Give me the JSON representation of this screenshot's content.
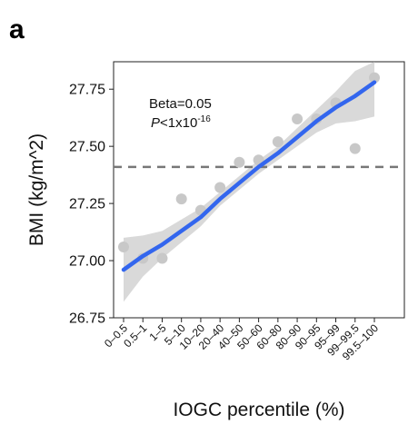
{
  "panel_label": "a",
  "chart_data": {
    "type": "scatter",
    "title": "",
    "xlabel": "IOGC percentile (%)",
    "ylabel": "BMI (kg/m^2)",
    "ylim": [
      26.75,
      27.87
    ],
    "yticks": [
      26.75,
      27.0,
      27.25,
      27.5,
      27.75
    ],
    "ytick_labels": [
      "26.75",
      "27.00",
      "27.25",
      "27.50",
      "27.75"
    ],
    "categories": [
      "0–0.5",
      "0.5–1",
      "1–5",
      "5–10",
      "10–20",
      "20–40",
      "40–50",
      "50–60",
      "60–80",
      "80–90",
      "90–95",
      "95–99",
      "99–99.5",
      "99.5–100"
    ],
    "points": [
      27.06,
      27.01,
      27.01,
      27.27,
      27.22,
      27.32,
      27.43,
      27.44,
      27.52,
      27.62,
      27.62,
      27.69,
      27.49,
      27.8
    ],
    "fit_line": [
      26.96,
      27.02,
      27.07,
      27.13,
      27.19,
      27.27,
      27.34,
      27.41,
      27.47,
      27.54,
      27.61,
      27.67,
      27.72,
      27.78
    ],
    "ci_lower": [
      26.82,
      26.93,
      27.01,
      27.08,
      27.15,
      27.24,
      27.31,
      27.38,
      27.44,
      27.5,
      27.56,
      27.6,
      27.61,
      27.63
    ],
    "ci_upper": [
      27.1,
      27.11,
      27.13,
      27.18,
      27.23,
      27.3,
      27.37,
      27.44,
      27.5,
      27.58,
      27.66,
      27.74,
      27.83,
      27.93
    ],
    "reference_line": 27.41,
    "annotation": {
      "beta": "Beta=0.05",
      "p_prefix": "P",
      "p_text": "<1x10",
      "p_exp": "-16"
    },
    "grid": false,
    "colors": {
      "fit": "#3366ee",
      "points": "#c8c8c8",
      "ci": "#d9d9d9",
      "reference": "#777777",
      "frame": "#222222"
    }
  }
}
